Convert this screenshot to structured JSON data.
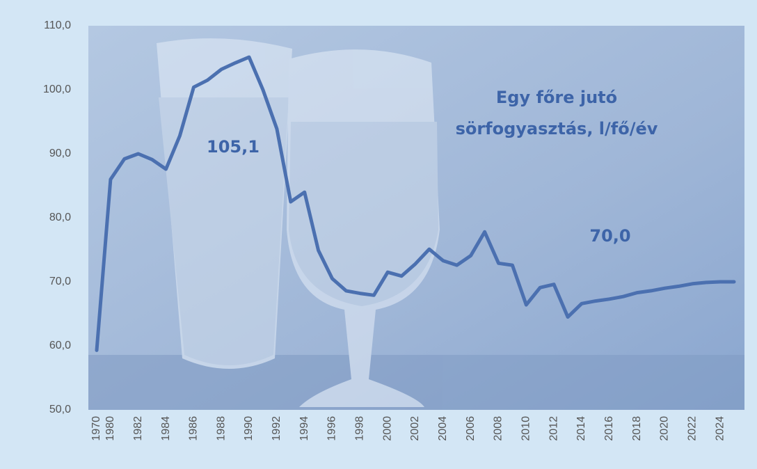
{
  "chart_data": {
    "type": "line",
    "title": [
      "Egy főre jutó",
      "sörfogyasztás, l/fő/év"
    ],
    "annotations": [
      "105,1",
      "70,0"
    ],
    "categories": [
      "1970",
      "1980",
      null,
      "1982",
      null,
      "1984",
      null,
      "1986",
      null,
      "1988",
      null,
      "1990",
      null,
      "1992",
      null,
      "1994",
      null,
      "1996",
      null,
      "1998",
      null,
      "2000",
      null,
      "2002",
      null,
      "2004",
      null,
      "2006",
      null,
      "2008",
      null,
      "2010",
      null,
      "2012",
      null,
      "2014",
      null,
      "2016",
      null,
      "2018",
      null,
      "2020",
      null,
      "2022",
      null,
      "2024",
      null
    ],
    "values": [
      59.3,
      86.0,
      89.2,
      90.0,
      89.1,
      87.6,
      92.8,
      100.4,
      101.5,
      103.2,
      104.2,
      105.1,
      100.0,
      93.9,
      82.5,
      84.0,
      74.9,
      70.5,
      68.6,
      68.2,
      67.9,
      71.5,
      70.9,
      72.8,
      75.1,
      73.3,
      72.6,
      74.1,
      77.8,
      72.9,
      72.6,
      66.4,
      69.1,
      69.6,
      64.5,
      66.6,
      67.0,
      67.3,
      67.7,
      68.3,
      68.6,
      69.0,
      69.3,
      69.7,
      69.9,
      70.0,
      70.0
    ],
    "color": "#4b70b0",
    "ylim": [
      50,
      110
    ],
    "yticks": [
      {
        "value": 50,
        "label": "50,0"
      },
      {
        "value": 60,
        "label": "60,0"
      },
      {
        "value": 70,
        "label": "70,0"
      },
      {
        "value": 80,
        "label": "80,0"
      },
      {
        "value": 90,
        "label": "90,0"
      },
      {
        "value": 100,
        "label": "100,0"
      },
      {
        "value": 110,
        "label": "110,0"
      }
    ]
  }
}
